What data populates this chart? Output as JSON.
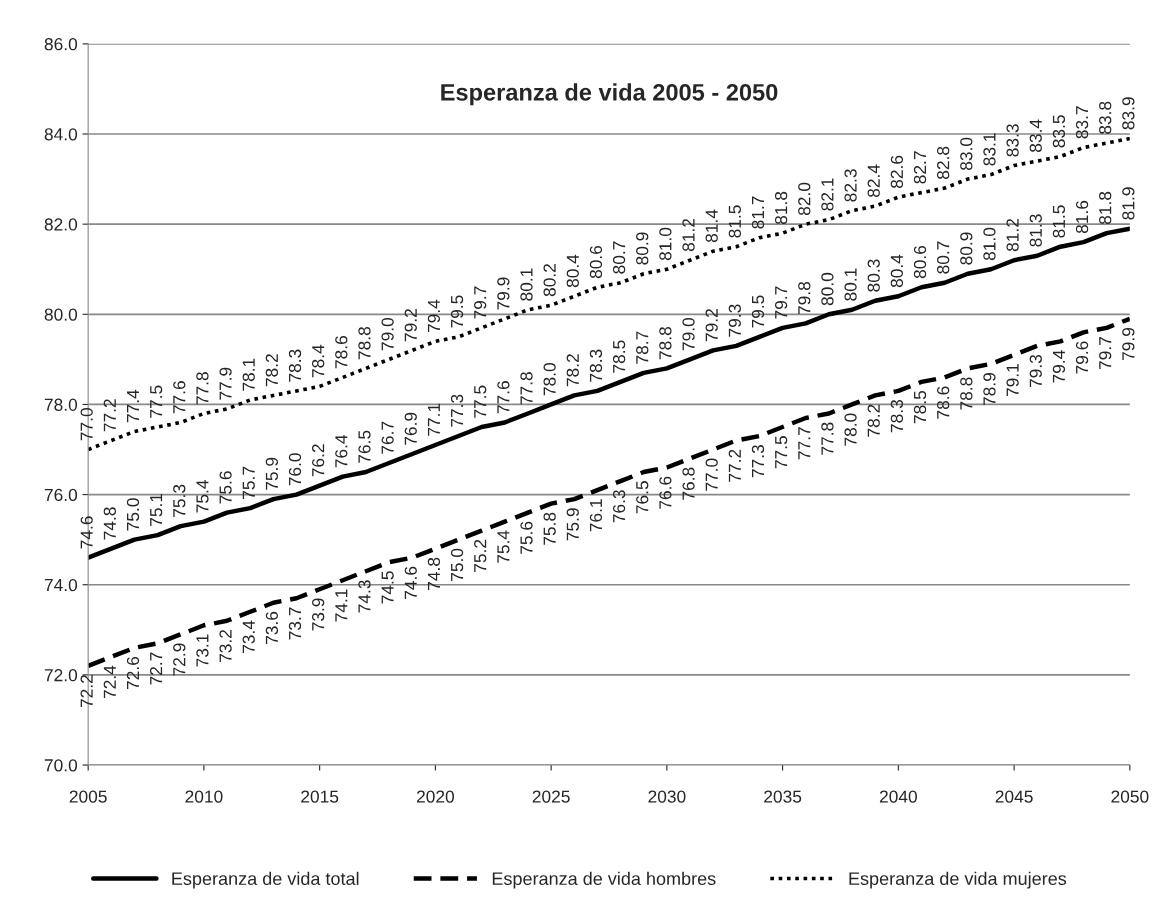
{
  "chart_data": {
    "type": "line",
    "title": "Esperanza de vida 2005 - 2050",
    "x": [
      2005,
      2006,
      2007,
      2008,
      2009,
      2010,
      2011,
      2012,
      2013,
      2014,
      2015,
      2016,
      2017,
      2018,
      2019,
      2020,
      2021,
      2022,
      2023,
      2024,
      2025,
      2026,
      2027,
      2028,
      2029,
      2030,
      2031,
      2032,
      2033,
      2034,
      2035,
      2036,
      2037,
      2038,
      2039,
      2040,
      2041,
      2042,
      2043,
      2044,
      2045,
      2046,
      2047,
      2048,
      2049,
      2050
    ],
    "series": [
      {
        "name": "Esperanza de vida total",
        "color": "#000000",
        "line_style": "solid",
        "values": [
          74.6,
          74.8,
          75.0,
          75.1,
          75.3,
          75.4,
          75.6,
          75.7,
          75.9,
          76.0,
          76.2,
          76.4,
          76.5,
          76.7,
          76.9,
          77.1,
          77.3,
          77.5,
          77.6,
          77.8,
          78.0,
          78.2,
          78.3,
          78.5,
          78.7,
          78.8,
          79.0,
          79.2,
          79.3,
          79.5,
          79.7,
          79.8,
          80.0,
          80.1,
          80.3,
          80.4,
          80.6,
          80.7,
          80.9,
          81.0,
          81.2,
          81.3,
          81.5,
          81.6,
          81.8,
          81.9
        ],
        "value_labels": [
          "74.6",
          "74.8",
          "75.0",
          "75.1",
          "75.3",
          "75.4",
          "75.6",
          "75.7",
          "75.9",
          "76.0",
          "76.2",
          "76.4",
          "76.5",
          "76.7",
          "76.9",
          "77.1",
          "77.3",
          "77.5",
          "77.6",
          "77.8",
          "78.0",
          "78.2",
          "78.3",
          "78.5",
          "78.7",
          "78.8",
          "79.0",
          "79.2",
          "79.3",
          "79.5",
          "79.7",
          "79.8",
          "80.0",
          "80.1",
          "80.3",
          "80.4",
          "80.6",
          "80.7",
          "80.9",
          "81.0",
          "81.2",
          "81.3",
          "81.5",
          "81.6",
          "81.8",
          "81.9"
        ]
      },
      {
        "name": "Esperanza de vida hombres",
        "color": "#000000",
        "line_style": "dashed",
        "values": [
          72.2,
          72.4,
          72.6,
          72.7,
          72.9,
          73.1,
          73.2,
          73.4,
          73.6,
          73.7,
          73.9,
          74.1,
          74.3,
          74.5,
          74.6,
          74.8,
          75.0,
          75.2,
          75.4,
          75.6,
          75.8,
          75.9,
          76.1,
          76.3,
          76.5,
          76.6,
          76.8,
          77.0,
          77.2,
          77.3,
          77.5,
          77.7,
          77.8,
          78.0,
          78.2,
          78.3,
          78.5,
          78.6,
          78.8,
          78.9,
          79.1,
          79.3,
          79.4,
          79.6,
          79.7,
          79.9
        ],
        "value_labels": [
          "72.2",
          "72.4",
          "72.6",
          "72.7",
          "72.9",
          "73.1",
          "73.2",
          "73.4",
          "73.6",
          "73.7",
          "73.9",
          "74.1",
          "74.3",
          "74.5",
          "74.6",
          "74.8",
          "75.0",
          "75.2",
          "75.4",
          "75.6",
          "75.8",
          "75.9",
          "76.1",
          "76.3",
          "76.5",
          "76.6",
          "76.8",
          "77.0",
          "77.2",
          "77.3",
          "77.5",
          "77.7",
          "77.8",
          "78.0",
          "78.2",
          "78.3",
          "78.5",
          "78.6",
          "78.8",
          "78.9",
          "79.1",
          "79.3",
          "79.4",
          "79.6",
          "79.7",
          "79.9"
        ]
      },
      {
        "name": "Esperanza de vida mujeres",
        "color": "#000000",
        "line_style": "dotted",
        "values": [
          77.0,
          77.2,
          77.4,
          77.5,
          77.6,
          77.8,
          77.9,
          78.1,
          78.2,
          78.3,
          78.4,
          78.6,
          78.8,
          79.0,
          79.2,
          79.4,
          79.5,
          79.7,
          79.9,
          80.1,
          80.2,
          80.4,
          80.6,
          80.7,
          80.9,
          81.0,
          81.2,
          81.4,
          81.5,
          81.7,
          81.8,
          82.0,
          82.1,
          82.3,
          82.4,
          82.6,
          82.7,
          82.8,
          83.0,
          83.1,
          83.3,
          83.4,
          83.5,
          83.7,
          83.8,
          83.9
        ],
        "value_labels": [
          "77.0",
          "77.2",
          "77.4",
          "77.5",
          "77.6",
          "77.8",
          "77.9",
          "78.1",
          "78.2",
          "78.3",
          "78.4",
          "78.6",
          "78.8",
          "79.0",
          "79.2",
          "79.4",
          "79.5",
          "79.7",
          "79.9",
          "80.1",
          "80.2",
          "80.4",
          "80.6",
          "80.7",
          "80.9",
          "81.0",
          "81.2",
          "81.4",
          "81.5",
          "81.7",
          "81.8",
          "82.0",
          "82.1",
          "82.3",
          "82.4",
          "82.6",
          "82.7",
          "82.8",
          "83.0",
          "83.1",
          "83.3",
          "83.4",
          "83.5",
          "83.7",
          "83.8",
          "83.9"
        ]
      }
    ],
    "xlim": [
      2005,
      2050
    ],
    "xticks": [
      2005,
      2010,
      2015,
      2020,
      2025,
      2030,
      2035,
      2040,
      2045,
      2050
    ],
    "ylim": [
      70,
      86
    ],
    "yticks": [
      {
        "value": 70,
        "label": "70.0"
      },
      {
        "value": 72,
        "label": "72.0"
      },
      {
        "value": 74,
        "label": "74.0"
      },
      {
        "value": 76,
        "label": "76.0"
      },
      {
        "value": 78,
        "label": "78.0"
      },
      {
        "value": 80,
        "label": "80.0"
      },
      {
        "value": 82,
        "label": "82.0"
      },
      {
        "value": 84,
        "label": "84.0"
      },
      {
        "value": 86,
        "label": "86.0"
      }
    ],
    "grid": "y",
    "legend": "bottom",
    "marker": "none"
  }
}
